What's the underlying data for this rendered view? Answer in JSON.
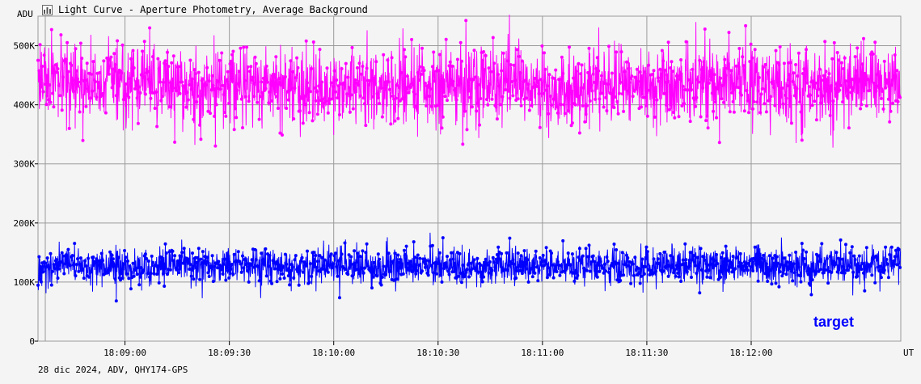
{
  "window": {
    "title": "Light Curve - Aperture Photometry, Average Background"
  },
  "footer_text": "28 dic 2024, ADV, QHY174-GPS",
  "colors": {
    "background": "#f4f4f4",
    "grid": "#9a9a9a",
    "comparison_series": "#ff00ff",
    "target_series": "#0000ff"
  },
  "chart_data": {
    "type": "line",
    "y_axis": {
      "unit_label": "ADU",
      "ylim": [
        0,
        550000
      ],
      "ticks": [
        0,
        100000,
        200000,
        300000,
        400000,
        500000
      ],
      "tick_labels": [
        "0",
        "100K",
        "200K",
        "300K",
        "400K",
        "500K"
      ]
    },
    "x_axis": {
      "unit_label": "UT",
      "xlim": [
        "18:08:35",
        "18:12:43"
      ],
      "ticks": [
        "18:09:00",
        "18:09:30",
        "18:10:00",
        "18:10:30",
        "18:11:00",
        "18:11:30",
        "18:12:00"
      ]
    },
    "grid": true,
    "markers": true,
    "series": [
      {
        "key": "comparison",
        "color": "#ff00ff",
        "points_per_second": 10,
        "mean": 432000,
        "std": 38000,
        "range": [
          305000,
          558000
        ],
        "summary_y": [
          452000,
          425000,
          438000,
          441000,
          430000,
          428000,
          436000,
          433000,
          427000,
          431000,
          437000,
          429000,
          434000,
          439000,
          430000,
          426000,
          435000,
          432000,
          428000,
          440000,
          437000,
          431000,
          433000,
          429000,
          444000,
          440000
        ]
      },
      {
        "key": "target",
        "name": "target",
        "color": "#0000ff",
        "points_per_second": 10,
        "mean": 128000,
        "std": 18000,
        "range": [
          68000,
          196000
        ],
        "summary_y": [
          122000,
          130000,
          127000,
          125000,
          131000,
          128000,
          129000,
          126000,
          132000,
          127000,
          124000,
          130000,
          128000,
          126000,
          129000,
          131000,
          125000,
          127000,
          130000,
          128000,
          126000,
          129000,
          127000,
          131000,
          128000,
          135000
        ]
      }
    ]
  }
}
